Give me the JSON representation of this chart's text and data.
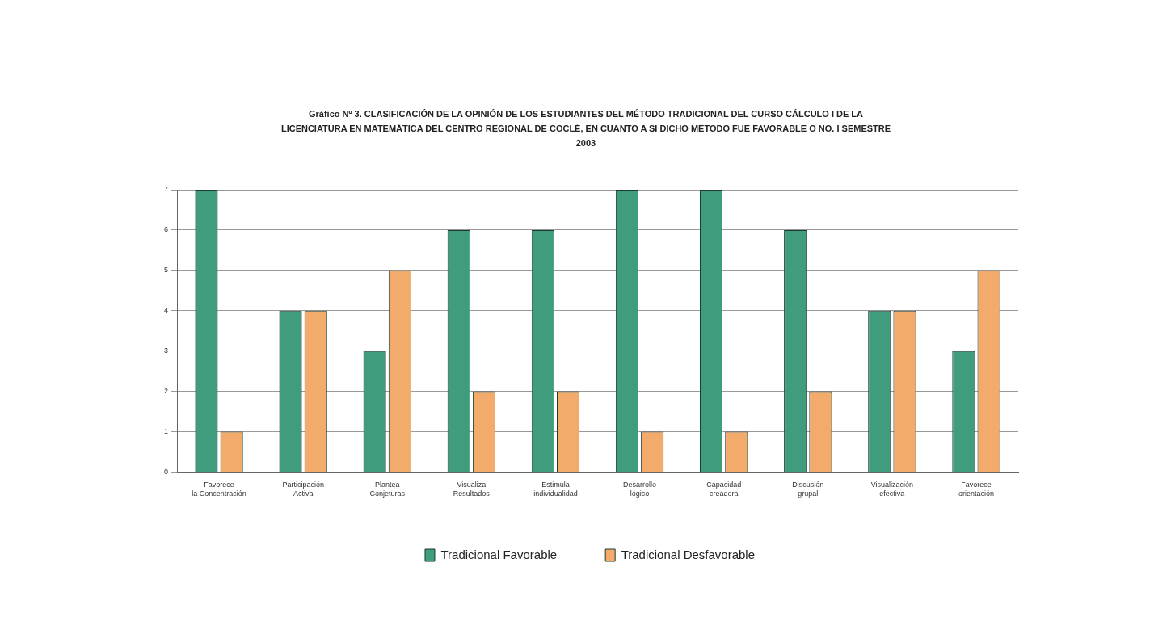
{
  "chart_data": {
    "type": "bar",
    "title": "Gráfico Nº 3.  CLASIFICACIÓN DE LA OPINIÓN DE LOS ESTUDIANTES DEL MÉTODO TRADICIONAL DEL CURSO CÁLCULO I DE LA LICENCIATURA EN MATEMÁTICA DEL CENTRO REGIONAL DE COCLÉ, EN CUANTO A SI DICHO MÉTODO FUE FAVORABLE O NO. I SEMESTRE 2003",
    "categories": [
      "Favorece la Concentración",
      "Participación Activa",
      "Plantea Conjeturas",
      "Visualiza Resultados",
      "Estimula individualidad",
      "Desarrollo lógico",
      "Capacidad creadora",
      "Discusión grupal",
      "Visualización efectiva",
      "Favorece orientación"
    ],
    "series": [
      {
        "name": "Tradicional Favorable",
        "color": "#3f9c7c",
        "values": [
          7,
          4,
          3,
          6,
          6,
          7,
          7,
          6,
          4,
          3
        ]
      },
      {
        "name": "Tradicional Desfavorable",
        "color": "#f2ab6a",
        "values": [
          1,
          4,
          5,
          2,
          2,
          1,
          1,
          2,
          4,
          5
        ]
      }
    ],
    "ylim": [
      0,
      7
    ],
    "yticks": [
      0,
      1,
      2,
      3,
      4,
      5,
      6,
      7
    ],
    "grid": "y",
    "legend": "bottom"
  }
}
